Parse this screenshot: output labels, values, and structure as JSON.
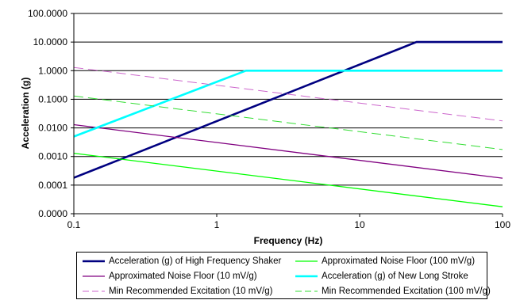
{
  "chart_data": {
    "type": "line",
    "title": "",
    "xlabel": "Frequency (Hz)",
    "ylabel": "Acceleration (g)",
    "x_scale": "log",
    "y_scale": "log",
    "xlim": [
      0.1,
      100
    ],
    "ylim": [
      1e-05,
      100
    ],
    "x_ticks": [
      0.1,
      1,
      10,
      100
    ],
    "x_tick_labels": [
      "0.1",
      "1",
      "10",
      "100"
    ],
    "y_ticks": [
      1e-05,
      0.0001,
      0.001,
      0.01,
      0.1,
      1,
      10,
      100
    ],
    "y_tick_labels": [
      "0.0000",
      "0.0001",
      "0.0010",
      "0.0100",
      "0.1000",
      "1.0000",
      "10.0000",
      "100.0000"
    ],
    "grid": "horizontal",
    "legend_position": "bottom",
    "series": [
      {
        "name": "Acceleration (g) of High Frequency Shaker",
        "color": "#000080",
        "dash": "solid",
        "width": 2.6,
        "x": [
          0.1,
          25,
          100
        ],
        "y": [
          0.00018,
          10,
          10
        ]
      },
      {
        "name": "Approximated Noise Floor (100 mV/g)",
        "color": "#00ff00",
        "dash": "solid",
        "width": 1.3,
        "x": [
          0.1,
          100
        ],
        "y": [
          0.0013,
          1.75e-05
        ]
      },
      {
        "name": "Approximated Noise Floor (10 mV/g)",
        "color": "#800080",
        "dash": "solid",
        "width": 1.3,
        "x": [
          0.1,
          100
        ],
        "y": [
          0.013,
          0.000175
        ]
      },
      {
        "name": "Acceleration (g) of New Long Stroke",
        "color": "#00ffff",
        "dash": "solid",
        "width": 2.6,
        "x": [
          0.1,
          1.6,
          100
        ],
        "y": [
          0.005,
          1,
          1
        ]
      },
      {
        "name": "Min Recommended Excitation (10 mV/g)",
        "color": "#cc66cc",
        "dash": "dashed",
        "width": 1,
        "x": [
          0.1,
          100
        ],
        "y": [
          1.3,
          0.0175
        ]
      },
      {
        "name": "Min Recommended Excitation (100 mV/g)",
        "color": "#33dd33",
        "dash": "dashed",
        "width": 1,
        "x": [
          0.1,
          100
        ],
        "y": [
          0.13,
          0.00175
        ]
      }
    ]
  }
}
